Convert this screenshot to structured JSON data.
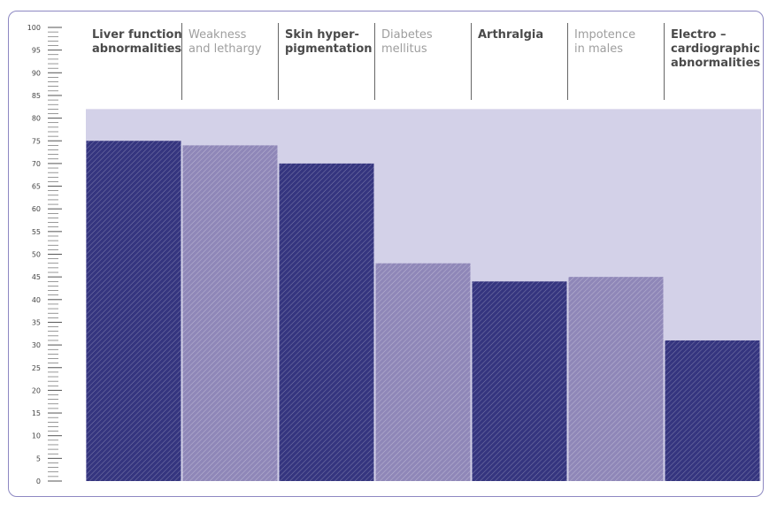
{
  "colors": {
    "dark_bar": "#35357f",
    "light_bar": "#8f87b8",
    "background_band": "#d3d1e8",
    "frame": "#8d88c2",
    "dark_label": "#4a4a4a",
    "light_label": "#9e9e9e",
    "divider": "#666666"
  },
  "chart_data": {
    "type": "bar",
    "title": "",
    "xlabel": "",
    "ylabel": "",
    "ylim": [
      0,
      100
    ],
    "y_ticks": [
      0,
      5,
      10,
      15,
      20,
      25,
      30,
      35,
      40,
      45,
      50,
      55,
      60,
      65,
      70,
      75,
      80,
      85,
      90,
      95,
      100
    ],
    "background_band_top": 82,
    "grid": false,
    "categories": [
      {
        "lines": [
          "Liver function",
          "abnormalities"
        ],
        "value": 75,
        "style": "dark"
      },
      {
        "lines": [
          "Weakness",
          "and lethargy"
        ],
        "value": 74,
        "style": "light"
      },
      {
        "lines": [
          "Skin hyper-",
          "pigmentation"
        ],
        "value": 70,
        "style": "dark"
      },
      {
        "lines": [
          "Diabetes",
          "mellitus"
        ],
        "value": 48,
        "style": "light"
      },
      {
        "lines": [
          "Arthralgia"
        ],
        "value": 44,
        "style": "dark"
      },
      {
        "lines": [
          "Impotence",
          "in males"
        ],
        "value": 45,
        "style": "light"
      },
      {
        "lines": [
          "Electro –",
          "cardiographic",
          "abnormalities"
        ],
        "value": 31,
        "style": "dark"
      }
    ]
  }
}
